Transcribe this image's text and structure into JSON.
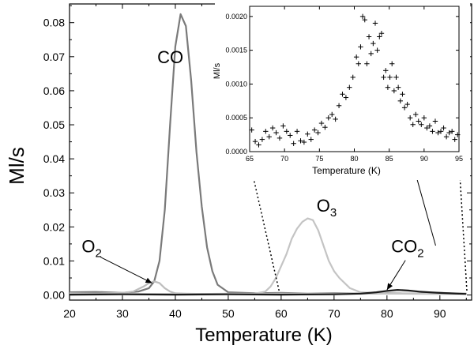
{
  "chart_data": {
    "main": {
      "type": "line",
      "xlabel": "Temperature (K)",
      "ylabel": "Ml/s",
      "xlim": [
        20,
        96
      ],
      "ylim": [
        -0.0015,
        0.0855
      ],
      "xticks": [
        "20",
        "30",
        "40",
        "50",
        "60",
        "70",
        "80",
        "90"
      ],
      "yticks": [
        "0.00",
        "0.01",
        "0.02",
        "0.03",
        "0.04",
        "0.05",
        "0.06",
        "0.07",
        "0.08"
      ],
      "series": [
        {
          "name": "CO",
          "color": "#7a7a7a",
          "x": [
            20,
            25,
            30,
            33,
            35,
            36,
            37,
            38,
            39,
            40,
            41,
            42,
            43,
            44,
            45,
            46,
            47,
            48,
            50,
            55,
            60,
            65,
            70,
            75,
            80,
            85,
            90,
            95
          ],
          "y": [
            0.0008,
            0.0009,
            0.0006,
            0.001,
            0.002,
            0.004,
            0.01,
            0.025,
            0.05,
            0.073,
            0.0825,
            0.079,
            0.063,
            0.042,
            0.026,
            0.014,
            0.007,
            0.003,
            0.0008,
            0.0005,
            0.0006,
            0.0004,
            0.0005,
            0.0004,
            0.0005,
            0.0004,
            0.0006,
            0.0004
          ]
        },
        {
          "name": "O2",
          "label_main": "O",
          "label_sub": "2",
          "color": "#bdbdbd",
          "x": [
            20,
            25,
            30,
            32,
            34,
            35,
            36,
            37,
            38,
            39,
            40,
            42,
            45,
            50,
            55,
            60,
            70,
            80,
            90,
            95
          ],
          "y": [
            0.0005,
            0.0004,
            0.0006,
            0.001,
            0.0025,
            0.0035,
            0.004,
            0.0035,
            0.002,
            0.001,
            0.0005,
            0.0004,
            0.0003,
            0.0004,
            0.0003,
            0.0004,
            0.0003,
            0.0004,
            0.0003,
            0.0004
          ]
        },
        {
          "name": "O3",
          "label_main": "O",
          "label_sub": "3",
          "color": "#c4c4c4",
          "x": [
            20,
            40,
            50,
            55,
            57,
            58,
            59,
            60,
            61,
            62,
            63,
            64,
            65,
            66,
            67,
            68,
            69,
            70,
            71,
            72,
            73,
            75,
            80,
            90,
            95
          ],
          "y": [
            0.0003,
            0.0003,
            0.0003,
            0.0004,
            0.001,
            0.0025,
            0.005,
            0.0085,
            0.012,
            0.0165,
            0.0195,
            0.0215,
            0.0225,
            0.022,
            0.019,
            0.0145,
            0.01,
            0.007,
            0.005,
            0.0035,
            0.002,
            0.0008,
            0.0004,
            0.0003,
            0.0003
          ]
        },
        {
          "name": "CO2",
          "label_main": "CO",
          "label_sub": "2",
          "color": "#1a1a1a",
          "x": [
            20,
            30,
            40,
            50,
            60,
            70,
            75,
            78,
            80,
            82,
            84,
            86,
            88,
            90,
            93,
            95
          ],
          "y": [
            0.0001,
            0.0002,
            0.0001,
            0.0002,
            0.0001,
            0.0002,
            0.0004,
            0.0008,
            0.0012,
            0.0015,
            0.0013,
            0.001,
            0.0008,
            0.0006,
            0.0004,
            0.0003
          ]
        }
      ],
      "annotations": [
        {
          "name": "co-label",
          "text": "CO",
          "x": 36.6,
          "y": 0.0681
        },
        {
          "name": "o2-label",
          "text": "O",
          "sub": "2",
          "x": 22.3,
          "y": 0.0125,
          "arrow_to": [
            35.6,
            0.0035
          ]
        },
        {
          "name": "o3-label",
          "text": "O",
          "sub": "3",
          "x": 66.7,
          "y": 0.0245
        },
        {
          "name": "co2-label",
          "text": "CO",
          "sub": "2",
          "x": 80.8,
          "y": 0.0125,
          "arrow_to": [
            80,
            0.0015
          ]
        }
      ]
    },
    "inset": {
      "type": "scatter",
      "marker": "+",
      "xlabel": "Temperature (K)",
      "ylabel": "Ml/s",
      "xlim": [
        65,
        95
      ],
      "ylim": [
        0,
        0.00215
      ],
      "xticks": [
        "65",
        "70",
        "75",
        "80",
        "85",
        "90",
        "95"
      ],
      "yticks": [
        "0.0000",
        "0.0005",
        "0.0010",
        "0.0015",
        "0.0020"
      ],
      "points_x": [
        65.3,
        65.8,
        66.3,
        66.8,
        67.3,
        67.8,
        68.3,
        68.8,
        69.3,
        69.8,
        70.3,
        70.8,
        71.3,
        71.8,
        72.3,
        72.8,
        73.3,
        73.8,
        74.3,
        74.8,
        75.3,
        75.8,
        76.3,
        76.8,
        77.3,
        77.8,
        78.3,
        78.8,
        79.3,
        79.8,
        80.3,
        80.6,
        80.9,
        81.2,
        81.5,
        81.8,
        82.1,
        82.4,
        82.7,
        83.0,
        83.3,
        83.6,
        83.9,
        84.2,
        84.5,
        84.8,
        85.1,
        85.4,
        85.7,
        86.0,
        86.3,
        86.6,
        86.9,
        87.2,
        87.6,
        88.0,
        88.4,
        88.8,
        89.2,
        89.6,
        90.0,
        90.4,
        90.8,
        91.2,
        91.6,
        92.0,
        92.4,
        92.8,
        93.2,
        93.6,
        94.0,
        94.4,
        94.8
      ],
      "points_y": [
        0.00032,
        0.00015,
        0.0001,
        0.00018,
        0.0003,
        0.00022,
        0.00035,
        0.00028,
        0.0002,
        0.00038,
        0.0003,
        0.00024,
        0.00012,
        0.0003,
        0.00016,
        0.00014,
        0.00026,
        0.00018,
        0.00032,
        0.00028,
        0.00042,
        0.00036,
        0.0005,
        0.00055,
        0.00048,
        0.00068,
        0.00085,
        0.0008,
        0.00095,
        0.0011,
        0.0014,
        0.0013,
        0.00155,
        0.002,
        0.00195,
        0.0013,
        0.0017,
        0.00145,
        0.0016,
        0.0019,
        0.0015,
        0.0017,
        0.00175,
        0.0011,
        0.0012,
        0.00095,
        0.0011,
        0.0013,
        0.0009,
        0.0011,
        0.00095,
        0.00075,
        0.00085,
        0.00065,
        0.0007,
        0.0005,
        0.0004,
        0.00055,
        0.00045,
        0.0004,
        0.0005,
        0.00035,
        0.00038,
        0.0003,
        0.00045,
        0.00028,
        0.0003,
        0.00035,
        0.00022,
        0.00028,
        0.0003,
        0.00018,
        0.00025
      ]
    }
  }
}
